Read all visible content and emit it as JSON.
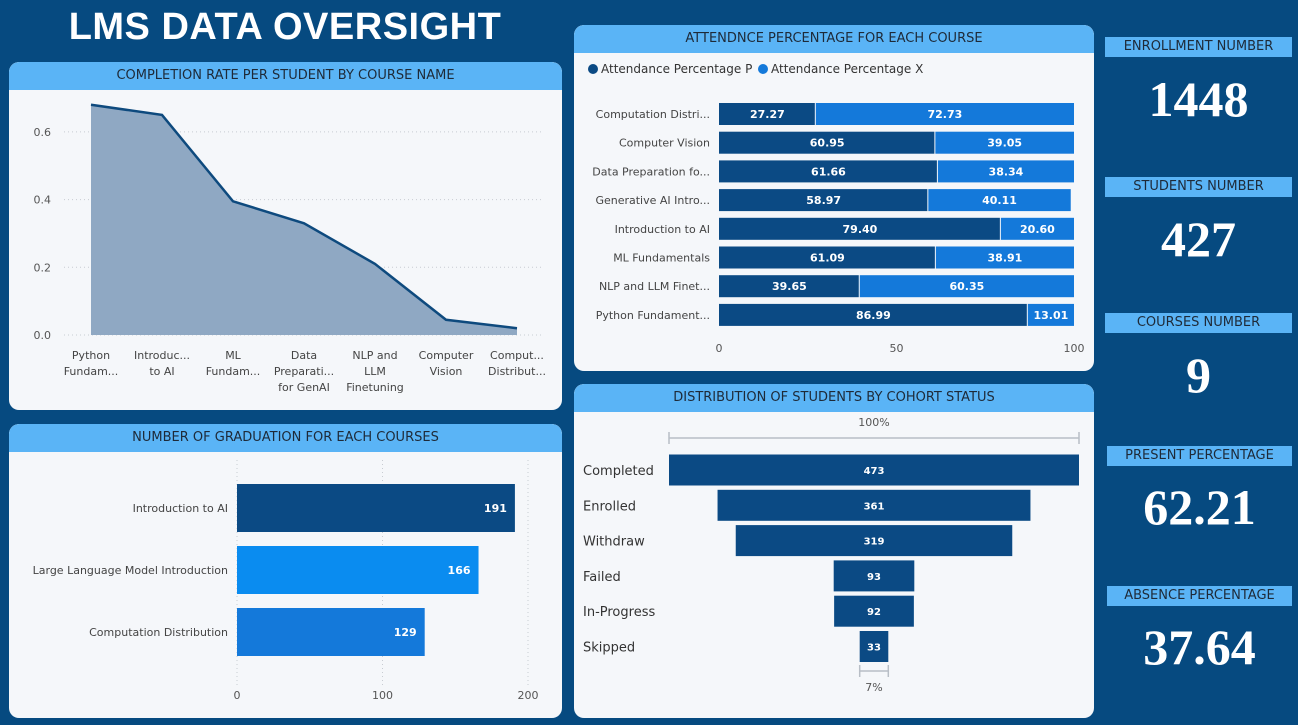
{
  "page_title": "LMS DATA OVERSIGHT",
  "colors": {
    "background": "#064a80",
    "header": "#5ab4f6",
    "dark_blue": "#0b4a84",
    "bright_blue": "#0a8cf0",
    "mid_blue": "#1479da",
    "area_fill": "#8fa8c3",
    "area_line": "#0e4a7e"
  },
  "kpis": [
    {
      "label": "ENROLLMENT NUMBER",
      "value": "1448"
    },
    {
      "label": "STUDENTS NUMBER",
      "value": "427"
    },
    {
      "label": "COURSES NUMBER",
      "value": "9"
    },
    {
      "label": "PRESENT PERCENTAGE",
      "value": "62.21"
    },
    {
      "label": "ABSENCE PERCENTAGE",
      "value": "37.64"
    }
  ],
  "chart_data": [
    {
      "id": "completion",
      "type": "area",
      "title": "COMPLETION RATE PER STUDENT BY COURSE NAME",
      "categories": [
        [
          "Python",
          "Fundam..."
        ],
        [
          "Introduc...",
          "to AI"
        ],
        [
          "ML",
          "Fundam..."
        ],
        [
          "Data",
          "Preparati...",
          "for GenAI"
        ],
        [
          "NLP and",
          "LLM",
          "Finetuning"
        ],
        [
          "Computer",
          "Vision"
        ],
        [
          "Comput...",
          "Distribut..."
        ]
      ],
      "values": [
        0.68,
        0.65,
        0.395,
        0.33,
        0.21,
        0.045,
        0.02
      ],
      "ylim": [
        0,
        0.7
      ],
      "yticks": [
        "0.0",
        "0.2",
        "0.4",
        "0.6"
      ],
      "grid": true
    },
    {
      "id": "graduation",
      "type": "bar",
      "orientation": "horizontal",
      "title": "NUMBER OF GRADUATION FOR EACH COURSES",
      "categories": [
        "Introduction to AI",
        "Large Language Model Introduction",
        "Computation Distribution"
      ],
      "values": [
        191,
        166,
        129
      ],
      "bar_colors": [
        "#0b4a84",
        "#0a8cf0",
        "#1479da"
      ],
      "xlim": [
        0,
        200
      ],
      "xticks": [
        "0",
        "100",
        "200"
      ],
      "grid": true
    },
    {
      "id": "attendance",
      "type": "bar",
      "orientation": "horizontal",
      "stacked": true,
      "title": "ATTENDNCE PERCENTAGE FOR EACH COURSE",
      "legend_position": "top-left",
      "categories": [
        "Computation Distri...",
        "Computer Vision",
        "Data Preparation fo...",
        "Generative AI Intro...",
        "Introduction to AI",
        "ML Fundamentals",
        "NLP and LLM Finet...",
        "Python Fundament..."
      ],
      "series": [
        {
          "name": "Attendance Percentage P",
          "color": "#0b4a84",
          "values": [
            27.27,
            60.95,
            61.66,
            58.97,
            79.4,
            61.09,
            39.65,
            86.99
          ],
          "labels": [
            "27.27",
            "60.95",
            "61.66",
            "58.97",
            "79.40",
            "61.09",
            "39.65",
            "86.99"
          ]
        },
        {
          "name": "Attendance Percentage X",
          "color": "#1479da",
          "values": [
            72.73,
            39.05,
            38.34,
            40.11,
            20.6,
            38.91,
            60.35,
            13.01
          ],
          "labels": [
            "72.73",
            "39.05",
            "38.34",
            "40.11",
            "20.60",
            "38.91",
            "60.35",
            "13.01"
          ]
        }
      ],
      "xlim": [
        0,
        100
      ],
      "xticks": [
        "0",
        "50",
        "100"
      ]
    },
    {
      "id": "cohort",
      "type": "bar",
      "subtype": "funnel",
      "title": "DISTRIBUTION OF STUDENTS BY COHORT STATUS",
      "categories": [
        "Completed",
        "Enrolled",
        "Withdraw",
        "Failed",
        "In-Progress",
        "Skipped"
      ],
      "values": [
        473,
        361,
        319,
        93,
        92,
        33
      ],
      "top_label": "100%",
      "bottom_label": "7%"
    }
  ]
}
